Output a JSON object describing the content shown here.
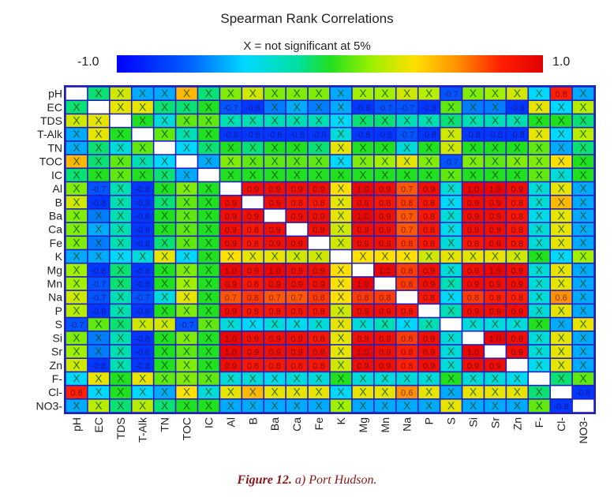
{
  "chart_data": {
    "type": "heatmap",
    "title": "Spearman Rank Correlations",
    "subtitle": "X = not significant at 5%",
    "colorbar": {
      "min_label": "-1.0",
      "max_label": "1.0",
      "range": [
        -1,
        1
      ]
    },
    "nonsig_marker": "X",
    "variables": [
      "pH",
      "EC",
      "TDS",
      "T-Alk",
      "TN",
      "TOC",
      "IC",
      "Al",
      "B",
      "Ba",
      "Ca",
      "Fe",
      "K",
      "Mg",
      "Mn",
      "Na",
      "P",
      "S",
      "Si",
      "Sr",
      "Zn",
      "F-",
      "Cl-",
      "NO3-"
    ],
    "lower_triangle": [
      [],
      [
        -0.1
      ],
      [
        0.3,
        0.35
      ],
      [
        -0.5,
        0.35,
        0.0
      ],
      [
        -0.5,
        -0.1,
        -0.3,
        0.1
      ],
      [
        0.5,
        -0.1,
        0.1,
        -0.2,
        -0.4
      ],
      [
        -0.1,
        0.0,
        0.1,
        0.0,
        -0.1,
        -0.5
      ],
      [
        0.15,
        -0.7,
        -0.2,
        -0.8,
        0.0,
        0.15,
        0.0
      ],
      [
        0.3,
        -0.8,
        -0.2,
        -0.8,
        -0.1,
        0.1,
        0.0,
        0.9
      ],
      [
        0.15,
        -0.6,
        -0.2,
        -0.8,
        0.0,
        0.1,
        0.0,
        0.9,
        0.9
      ],
      [
        0.15,
        -0.5,
        -0.2,
        -0.8,
        0.0,
        0.1,
        0.0,
        0.9,
        0.85,
        0.9
      ],
      [
        0.15,
        -0.6,
        -0.2,
        -0.8,
        -0.1,
        0.1,
        0.0,
        0.9,
        0.85,
        0.9,
        0.9
      ],
      [
        -0.5,
        -0.5,
        -0.4,
        -0.3,
        0.35,
        -0.4,
        0.0,
        0.4,
        0.35,
        0.35,
        0.3,
        0.3
      ],
      [
        0.2,
        -0.8,
        -0.1,
        -0.8,
        0.0,
        0.15,
        0.0,
        0.95,
        0.9,
        0.95,
        0.9,
        0.9,
        0.4
      ],
      [
        0.2,
        -0.7,
        -0.1,
        -0.8,
        0.0,
        0.2,
        0.0,
        0.9,
        0.85,
        0.9,
        0.9,
        0.9,
        0.4,
        0.95
      ],
      [
        0.3,
        -0.7,
        -0.2,
        -0.7,
        -0.3,
        0.35,
        0.0,
        0.7,
        0.75,
        0.7,
        0.7,
        0.75,
        0.4,
        0.75,
        0.75
      ],
      [
        0.25,
        -0.8,
        -0.2,
        -0.8,
        0.0,
        0.15,
        0.0,
        0.9,
        0.85,
        0.85,
        0.85,
        0.85,
        0.3,
        0.9,
        0.9,
        0.85
      ],
      [
        -0.7,
        0.1,
        -0.1,
        0.3,
        0.3,
        -0.7,
        0.1,
        -0.3,
        -0.4,
        -0.3,
        -0.35,
        -0.3,
        0.35,
        -0.3,
        -0.2,
        -0.4,
        -0.2
      ],
      [
        0.15,
        -0.6,
        -0.2,
        -0.8,
        0.0,
        0.15,
        0.0,
        0.95,
        0.9,
        0.9,
        0.9,
        0.85,
        0.35,
        0.9,
        0.9,
        0.75,
        0.9,
        -0.3
      ],
      [
        0.2,
        -0.6,
        -0.2,
        -0.8,
        0.0,
        0.1,
        0.0,
        0.95,
        0.9,
        0.9,
        0.9,
        0.9,
        0.35,
        0.95,
        0.9,
        0.8,
        0.9,
        -0.3,
        0.95
      ],
      [
        0.3,
        -0.8,
        -0.2,
        -0.8,
        0.0,
        0.15,
        0.0,
        0.9,
        0.85,
        0.85,
        0.85,
        0.85,
        0.3,
        0.9,
        0.9,
        0.8,
        0.9,
        -0.3,
        0.9,
        0.9
      ],
      [
        -0.4,
        0.35,
        0.0,
        0.35,
        0.1,
        0.15,
        0.1,
        -0.3,
        -0.3,
        -0.35,
        -0.3,
        -0.3,
        0.0,
        -0.3,
        -0.3,
        -0.3,
        -0.3,
        0.0,
        -0.3,
        -0.3,
        -0.35
      ],
      [
        0.8,
        -0.4,
        0.0,
        -0.4,
        -0.5,
        0.4,
        -0.3,
        0.35,
        0.5,
        0.35,
        0.35,
        0.35,
        -0.4,
        0.35,
        0.35,
        0.6,
        0.35,
        -0.5,
        0.35,
        0.35,
        0.35,
        -0.1
      ],
      [
        -0.5,
        0.25,
        -0.1,
        0.25,
        -0.1,
        0.0,
        0.0,
        -0.5,
        -0.5,
        -0.5,
        -0.5,
        -0.5,
        0.2,
        -0.5,
        -0.5,
        -0.5,
        -0.5,
        0.35,
        -0.5,
        -0.5,
        -0.5,
        0.1,
        -0.8
      ]
    ],
    "significant_lower_triangle": [
      "",
      "0",
      "00",
      "000",
      "0000",
      "00000",
      "000000",
      "0101000",
      "01010001",
      "000100011",
      "0001000111",
      "00010001111",
      "000000000000",
      "0101000111110",
      "01010001111101",
      "010100011111011",
      "0101000111110111",
      "10000100000000000",
      "000100011111011110",
      "0001000111110111101",
      "01010001111101111011",
      "000000000000000000000",
      "1000000000000001000000",
      "00000000000000000000001"
    ]
  },
  "caption": {
    "figure_label": "Figure 12.",
    "text": " a) Port Hudson."
  }
}
